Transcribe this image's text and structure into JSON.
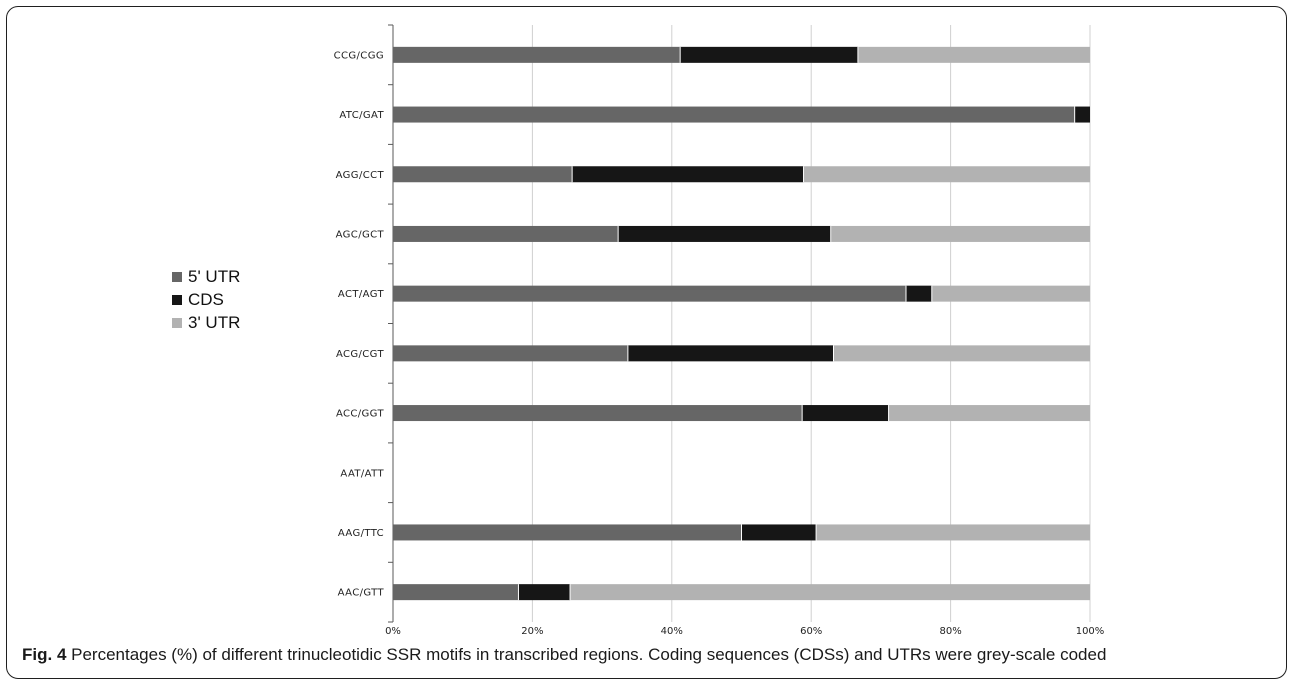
{
  "chart_data": {
    "type": "bar",
    "orientation": "horizontal",
    "stacked": true,
    "categories": [
      "CCG/CGG",
      "ATC/GAT",
      "AGG/CCT",
      "AGC/GCT",
      "ACT/AGT",
      "ACG/CGT",
      "ACC/GGT",
      "AAT/ATT",
      "AAG/TTC",
      "AAC/GTT"
    ],
    "series": [
      {
        "name": "5' UTR",
        "color": "#666666",
        "values": [
          41.2,
          97.8,
          25.7,
          32.3,
          73.6,
          33.7,
          58.7,
          0,
          50.0,
          18.0
        ]
      },
      {
        "name": "CDS",
        "color": "#161616",
        "values": [
          25.5,
          2.2,
          33.2,
          30.5,
          3.7,
          29.5,
          12.4,
          0,
          10.7,
          7.4
        ]
      },
      {
        "name": "3' UTR",
        "color": "#b2b2b2",
        "values": [
          33.3,
          0,
          41.1,
          37.2,
          22.7,
          36.8,
          28.9,
          0,
          39.3,
          74.6
        ]
      }
    ],
    "x_ticks": [
      "0%",
      "20%",
      "40%",
      "60%",
      "80%",
      "100%"
    ],
    "xlim": [
      0,
      100
    ],
    "grid": true,
    "legend_position": "left"
  },
  "caption": {
    "figure_label": "Fig. 4",
    "text": " Percentages (%) of different trinucleotidic SSR motifs in transcribed regions. Coding sequences (CDSs) and UTRs were grey-scale coded"
  }
}
